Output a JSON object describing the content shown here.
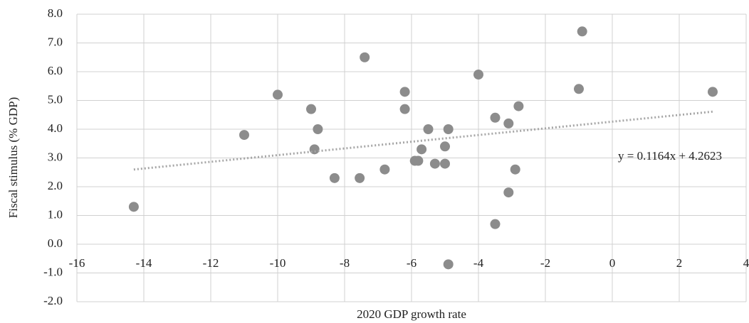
{
  "chart_data": {
    "type": "scatter",
    "x_label": "2020 GDP growth rate",
    "y_label": "Fiscal stimulus (% GDP)",
    "color": "#8c8c8c",
    "grid": true,
    "x": [
      -14.3,
      -11.0,
      -10.0,
      -9.0,
      -8.8,
      -8.9,
      -8.3,
      -7.55,
      -7.4,
      -6.8,
      -6.2,
      -6.2,
      -5.9,
      -5.8,
      -5.7,
      -5.5,
      -5.3,
      -5.0,
      -5.0,
      -4.9,
      -4.9,
      -4.0,
      -3.5,
      -3.5,
      -3.1,
      -3.1,
      -2.9,
      -2.8,
      -1.0,
      -0.9,
      3.0
    ],
    "values": [
      1.3,
      3.8,
      5.2,
      4.7,
      4.0,
      3.3,
      2.3,
      2.3,
      6.5,
      2.6,
      5.3,
      4.7,
      2.9,
      2.9,
      3.3,
      4.0,
      2.8,
      3.4,
      2.8,
      4.0,
      -0.7,
      5.9,
      4.4,
      0.7,
      4.2,
      1.8,
      2.6,
      4.8,
      5.4,
      7.4,
      5.3
    ],
    "trendline": {
      "label": "y = 0.1164x + 4.2623",
      "slope": 0.1164,
      "intercept": 4.2623
    },
    "xlim": [
      -16,
      4
    ],
    "xticks": [
      -16,
      -14,
      -12,
      -10,
      -8,
      -6,
      -4,
      -2,
      0,
      2,
      4
    ],
    "ylim": [
      -2,
      8
    ],
    "yticks": [
      {
        "value": -2,
        "label": "-2.0"
      },
      {
        "value": -1,
        "label": "-1.0"
      },
      {
        "value": 0,
        "label": "0.0"
      },
      {
        "value": 1,
        "label": "1.0"
      },
      {
        "value": 2,
        "label": "2.0"
      },
      {
        "value": 3,
        "label": "3.0"
      },
      {
        "value": 4,
        "label": "4.0"
      },
      {
        "value": 5,
        "label": "5.0"
      },
      {
        "value": 6,
        "label": "6.0"
      },
      {
        "value": 7,
        "label": "7.0"
      },
      {
        "value": 8,
        "label": "8.0"
      }
    ]
  }
}
